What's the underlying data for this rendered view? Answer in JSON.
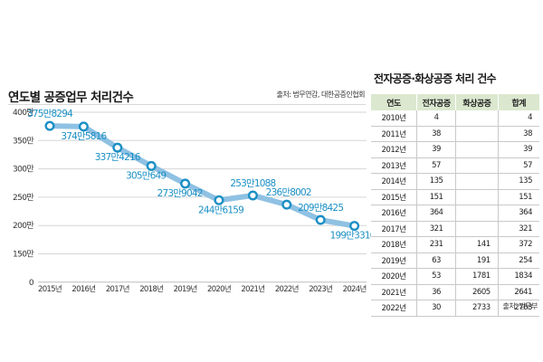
{
  "chart_data": {
    "type": "line",
    "title": "연도별 공증업무 처리건수",
    "source": "출처: 법무연감, 대한공증인협회",
    "xlabel": "",
    "ylabel": "",
    "x": [
      "2015년",
      "2016년",
      "2017년",
      "2018년",
      "2019년",
      "2020년",
      "2021년",
      "2022년",
      "2023년",
      "2024년"
    ],
    "series": [
      {
        "name": "공증업무 처리건수",
        "values": [
          3758294,
          3745816,
          3374216,
          3050649,
          2739042,
          2446159,
          2531088,
          2368002,
          2098425,
          1993310
        ],
        "labels": [
          "375만8294",
          "374만5816",
          "337만4216",
          "305만649",
          "273만9042",
          "244만6159",
          "253만1088",
          "236만8002",
          "209만8425",
          "199만3310"
        ],
        "color": "#1b8fc4",
        "line_color": "#8fc1e3"
      }
    ],
    "yticks": [
      {
        "value": 4000000,
        "label": "400만"
      },
      {
        "value": 3500000,
        "label": "350만"
      },
      {
        "value": 3000000,
        "label": "300만"
      },
      {
        "value": 2500000,
        "label": "250만"
      },
      {
        "value": 2000000,
        "label": "200만"
      },
      {
        "value": 1500000,
        "label": "150만"
      },
      {
        "value": 0,
        "label": "0"
      }
    ],
    "ylim": [
      0,
      4000000
    ],
    "y_axis_break": "between 0 and 150만 (0 drawn one step below 150만)",
    "grid": true,
    "legend": "none"
  },
  "table": {
    "title": "전자공증·화상공증 처리 건수",
    "headers": [
      "연도",
      "전자공증",
      "화상공증",
      "합계"
    ],
    "rows": [
      [
        "2010년",
        "4",
        "",
        "4"
      ],
      [
        "2011년",
        "38",
        "",
        "38"
      ],
      [
        "2012년",
        "39",
        "",
        "39"
      ],
      [
        "2013년",
        "57",
        "",
        "57"
      ],
      [
        "2014년",
        "135",
        "",
        "135"
      ],
      [
        "2015년",
        "151",
        "",
        "151"
      ],
      [
        "2016년",
        "364",
        "",
        "364"
      ],
      [
        "2017년",
        "321",
        "",
        "321"
      ],
      [
        "2018년",
        "231",
        "141",
        "372"
      ],
      [
        "2019년",
        "63",
        "191",
        "254"
      ],
      [
        "2020년",
        "53",
        "1781",
        "1834"
      ],
      [
        "2021년",
        "36",
        "2605",
        "2641"
      ],
      [
        "2022년",
        "30",
        "2733",
        "2763"
      ]
    ],
    "source": "출처: 법무부",
    "header_color": "#dbe8cf"
  }
}
